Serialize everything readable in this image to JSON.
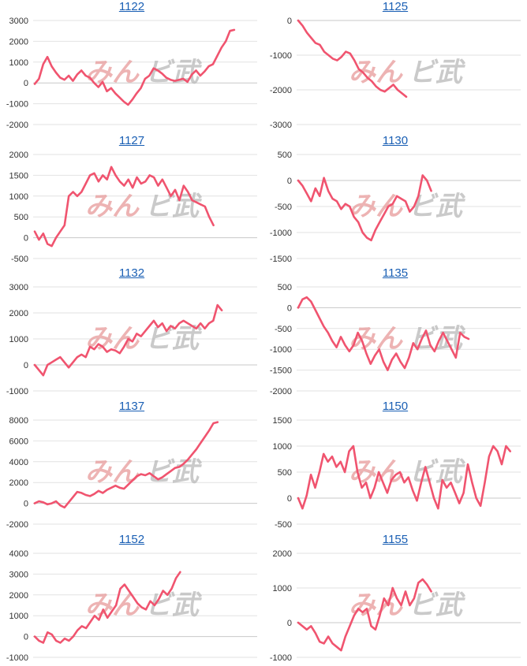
{
  "colors": {
    "line": "#f0546f",
    "link": "#1a5fb4",
    "watermark_a": "#e79a9a",
    "watermark_b": "#b9b9b9"
  },
  "watermark": {
    "text_a": "みん",
    "text_b": "ビ武"
  },
  "chart_data": [
    {
      "type": "line",
      "title": "1122",
      "ylim": [
        -2000,
        3000
      ],
      "yticks": [
        -2000,
        -1000,
        0,
        1000,
        2000,
        3000
      ],
      "values": [
        -50,
        200,
        900,
        1250,
        800,
        500,
        250,
        150,
        350,
        100,
        400,
        600,
        350,
        250,
        0,
        -200,
        50,
        -400,
        -250,
        -500,
        -700,
        -900,
        -1050,
        -800,
        -500,
        -250,
        200,
        350,
        700,
        600,
        450,
        250,
        150,
        100,
        150,
        200,
        50,
        400,
        600,
        350,
        550,
        800,
        900,
        1300,
        1700,
        2000,
        2500,
        2550
      ]
    },
    {
      "type": "line",
      "title": "1125",
      "ylim": [
        -3000,
        0
      ],
      "yticks": [
        -3000,
        -2000,
        -1000,
        0
      ],
      "values": [
        0,
        -150,
        -350,
        -500,
        -650,
        -700,
        -900,
        -1000,
        -1100,
        -1150,
        -1050,
        -900,
        -950,
        -1150,
        -1400,
        -1500,
        -1650,
        -1750,
        -1900,
        -2000,
        -2050,
        -1950,
        -1850,
        -2000,
        -2100,
        -2200
      ]
    },
    {
      "type": "line",
      "title": "1127",
      "ylim": [
        -500,
        2000
      ],
      "yticks": [
        -500,
        0,
        500,
        1000,
        1500,
        2000
      ],
      "values": [
        150,
        -50,
        100,
        -150,
        -200,
        0,
        150,
        300,
        1000,
        1100,
        1000,
        1100,
        1300,
        1500,
        1550,
        1350,
        1500,
        1400,
        1700,
        1500,
        1350,
        1250,
        1400,
        1200,
        1450,
        1300,
        1350,
        1500,
        1450,
        1250,
        1400,
        1200,
        1000,
        1150,
        900,
        1250,
        1100,
        900,
        850,
        800,
        750,
        500,
        300
      ]
    },
    {
      "type": "line",
      "title": "1130",
      "ylim": [
        -1500,
        500
      ],
      "yticks": [
        -1500,
        -1000,
        -500,
        0,
        500
      ],
      "values": [
        0,
        -100,
        -250,
        -400,
        -150,
        -300,
        50,
        -200,
        -350,
        -400,
        -550,
        -450,
        -500,
        -700,
        -800,
        -1000,
        -1100,
        -1150,
        -950,
        -800,
        -650,
        -500,
        -450,
        -300,
        -350,
        -400,
        -600,
        -500,
        -300,
        100,
        0,
        -200
      ]
    },
    {
      "type": "line",
      "title": "1132",
      "ylim": [
        -1000,
        3000
      ],
      "yticks": [
        -1000,
        0,
        1000,
        2000,
        3000
      ],
      "values": [
        0,
        -200,
        -400,
        0,
        100,
        200,
        300,
        100,
        -100,
        100,
        300,
        400,
        300,
        700,
        600,
        800,
        700,
        500,
        600,
        550,
        450,
        700,
        1000,
        900,
        1200,
        1100,
        1300,
        1500,
        1700,
        1450,
        1600,
        1300,
        1500,
        1400,
        1600,
        1700,
        1600,
        1500,
        1400,
        1600,
        1400,
        1600,
        1700,
        2300,
        2100
      ]
    },
    {
      "type": "line",
      "title": "1135",
      "ylim": [
        -2000,
        500
      ],
      "yticks": [
        -2000,
        -1500,
        -1000,
        -500,
        0,
        500
      ],
      "values": [
        0,
        200,
        250,
        150,
        -50,
        -250,
        -450,
        -600,
        -800,
        -950,
        -700,
        -900,
        -1050,
        -900,
        -600,
        -800,
        -1100,
        -1350,
        -1150,
        -1000,
        -1300,
        -1500,
        -1250,
        -1100,
        -1300,
        -1450,
        -1200,
        -850,
        -1000,
        -750,
        -550,
        -900,
        -1050,
        -800,
        -600,
        -800,
        -1000,
        -1200,
        -600,
        -700,
        -750
      ]
    },
    {
      "type": "line",
      "title": "1137",
      "ylim": [
        -2000,
        8000
      ],
      "yticks": [
        -2000,
        0,
        2000,
        4000,
        6000,
        8000
      ],
      "values": [
        0,
        200,
        100,
        -100,
        0,
        200,
        -200,
        -400,
        100,
        600,
        1100,
        1000,
        800,
        700,
        900,
        1200,
        1000,
        1300,
        1500,
        1700,
        1500,
        1400,
        1800,
        2200,
        2600,
        2800,
        2700,
        2900,
        2600,
        2300,
        2500,
        2800,
        3100,
        3400,
        3500,
        3800,
        4200,
        4700,
        5200,
        5800,
        6400,
        7000,
        7700,
        7800
      ]
    },
    {
      "type": "line",
      "title": "1150",
      "ylim": [
        -500,
        1500
      ],
      "yticks": [
        -500,
        0,
        500,
        1000,
        1500
      ],
      "values": [
        0,
        -200,
        50,
        450,
        200,
        500,
        850,
        700,
        800,
        600,
        700,
        500,
        900,
        1000,
        500,
        200,
        300,
        0,
        200,
        500,
        300,
        100,
        350,
        450,
        500,
        300,
        400,
        150,
        -50,
        300,
        600,
        300,
        0,
        -200,
        350,
        200,
        300,
        100,
        -100,
        100,
        650,
        300,
        0,
        -150,
        300,
        800,
        1000,
        900,
        650,
        1000,
        900
      ]
    },
    {
      "type": "line",
      "title": "1152",
      "ylim": [
        -1000,
        4000
      ],
      "yticks": [
        -1000,
        0,
        1000,
        2000,
        3000,
        4000
      ],
      "values": [
        0,
        -200,
        -300,
        200,
        100,
        -200,
        -300,
        -100,
        -200,
        0,
        300,
        500,
        400,
        700,
        1000,
        800,
        1300,
        900,
        1200,
        1500,
        2300,
        2500,
        2200,
        1900,
        1600,
        1400,
        1300,
        1700,
        1500,
        1800,
        2200,
        2000,
        2300,
        2800,
        3100
      ]
    },
    {
      "type": "line",
      "title": "1155",
      "ylim": [
        -1000,
        2000
      ],
      "yticks": [
        -1000,
        0,
        1000,
        2000
      ],
      "values": [
        0,
        -100,
        -200,
        -100,
        -300,
        -550,
        -600,
        -400,
        -600,
        -700,
        -800,
        -400,
        -100,
        200,
        400,
        300,
        400,
        -100,
        -200,
        200,
        700,
        500,
        1000,
        700,
        500,
        900,
        500,
        700,
        1150,
        1250,
        1100,
        900
      ]
    }
  ]
}
